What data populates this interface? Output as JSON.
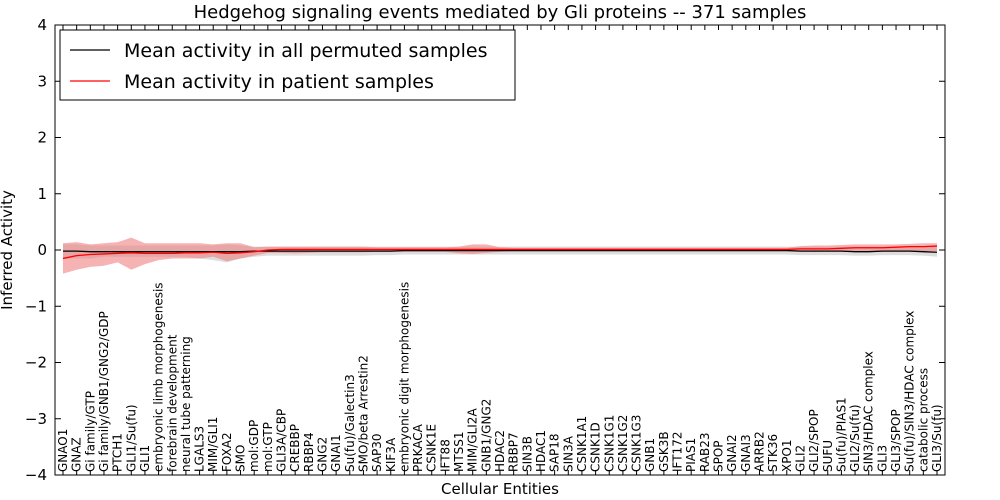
{
  "chart_data": {
    "type": "line",
    "title": "Hedgehog signaling events mediated by Gli proteins -- 371 samples",
    "xlabel": "Cellular Entities",
    "ylabel": "Inferred Activity",
    "ylim": [
      -4,
      4
    ],
    "yticks": [
      -4,
      -3,
      -2,
      -1,
      0,
      1,
      2,
      3,
      4
    ],
    "ytick_labels": [
      "−4",
      "−3",
      "−2",
      "−1",
      "0",
      "1",
      "2",
      "3",
      "4"
    ],
    "grid": false,
    "legend_position": "top-left",
    "categories": [
      "GNAO1",
      "GNAZ",
      "Gi family/GTP",
      "Gi family/GNB1/GNG2/GDP",
      "PTCH1",
      "GLI1/Su(fu)",
      "GLI1",
      "embryonic limb morphogenesis",
      "forebrain development",
      "neural tube patterning",
      "LGALS3",
      "MIM/GLI1",
      "FOXA2",
      "SMO",
      "mol:GDP",
      "mol:GTP",
      "GLI3A/CBP",
      "CREBBP",
      "RBBP4",
      "GNG2",
      "GNAI1",
      "Su(fu)/Galectin3",
      "SMO/beta Arrestin2",
      "SAP30",
      "KIF3A",
      "embryonic digit morphogenesis",
      "PRKACA",
      "CSNK1E",
      "IFT88",
      "MTSS1",
      "MIM/GLI2A",
      "GNB1/GNG2",
      "HDAC2",
      "RBBP7",
      "SIN3B",
      "HDAC1",
      "SAP18",
      "SIN3A",
      "CSNK1A1",
      "CSNK1D",
      "CSNK1G1",
      "CSNK1G2",
      "CSNK1G3",
      "GNB1",
      "GSK3B",
      "IFT172",
      "PIAS1",
      "RAB23",
      "SPOP",
      "GNAI2",
      "GNAI3",
      "ARRB2",
      "STK36",
      "XPO1",
      "GLI2",
      "GLI2/SPOP",
      "SUFU",
      "Su(fu)/PIAS1",
      "GLI2/Su(fu)",
      "SIN3/HDAC complex",
      "GLI3",
      "GLI3/SPOP",
      "Su(fu)/SIN3/HDAC complex",
      "catabolic process",
      "GLI3/Su(fu)"
    ],
    "series": [
      {
        "name": "Mean activity in all permuted samples",
        "color": "#000000",
        "band_color": "#bbbbbb",
        "values": [
          -0.02,
          -0.02,
          -0.03,
          -0.03,
          -0.03,
          -0.03,
          -0.03,
          -0.03,
          -0.03,
          -0.03,
          -0.03,
          -0.03,
          -0.03,
          -0.03,
          -0.02,
          -0.02,
          -0.02,
          -0.02,
          -0.02,
          -0.02,
          -0.02,
          -0.02,
          -0.02,
          -0.02,
          -0.02,
          -0.01,
          -0.01,
          -0.01,
          -0.01,
          -0.01,
          -0.01,
          -0.01,
          -0.01,
          -0.01,
          -0.01,
          -0.01,
          -0.01,
          -0.01,
          -0.01,
          -0.01,
          -0.01,
          -0.01,
          -0.01,
          -0.01,
          -0.01,
          -0.01,
          -0.01,
          -0.01,
          -0.01,
          -0.01,
          -0.01,
          -0.01,
          -0.01,
          -0.01,
          -0.02,
          -0.02,
          -0.02,
          -0.02,
          -0.03,
          -0.03,
          -0.02,
          -0.02,
          -0.02,
          -0.03,
          -0.04
        ],
        "band_lower": [
          -0.15,
          -0.15,
          -0.15,
          -0.12,
          -0.12,
          -0.12,
          -0.12,
          -0.12,
          -0.12,
          -0.12,
          -0.15,
          -0.18,
          -0.22,
          -0.15,
          -0.12,
          -0.1,
          -0.1,
          -0.1,
          -0.1,
          -0.1,
          -0.1,
          -0.1,
          -0.1,
          -0.09,
          -0.09,
          -0.08,
          -0.08,
          -0.08,
          -0.08,
          -0.08,
          -0.08,
          -0.08,
          -0.08,
          -0.08,
          -0.08,
          -0.08,
          -0.08,
          -0.08,
          -0.08,
          -0.08,
          -0.08,
          -0.08,
          -0.08,
          -0.08,
          -0.08,
          -0.08,
          -0.08,
          -0.08,
          -0.08,
          -0.08,
          -0.08,
          -0.08,
          -0.08,
          -0.08,
          -0.09,
          -0.09,
          -0.09,
          -0.09,
          -0.1,
          -0.1,
          -0.09,
          -0.09,
          -0.09,
          -0.1,
          -0.12
        ],
        "band_upper": [
          0.1,
          0.1,
          0.08,
          0.08,
          0.08,
          0.08,
          0.08,
          0.08,
          0.08,
          0.08,
          0.08,
          0.08,
          0.1,
          0.08,
          0.06,
          0.06,
          0.06,
          0.06,
          0.06,
          0.06,
          0.06,
          0.06,
          0.06,
          0.06,
          0.06,
          0.06,
          0.06,
          0.06,
          0.06,
          0.06,
          0.06,
          0.06,
          0.06,
          0.06,
          0.06,
          0.06,
          0.06,
          0.06,
          0.06,
          0.06,
          0.06,
          0.06,
          0.06,
          0.06,
          0.06,
          0.06,
          0.06,
          0.06,
          0.06,
          0.06,
          0.06,
          0.06,
          0.06,
          0.06,
          0.06,
          0.06,
          0.06,
          0.06,
          0.06,
          0.06,
          0.06,
          0.06,
          0.06,
          0.06,
          0.06
        ]
      },
      {
        "name": "Mean activity in patient samples",
        "color": "#ff0000",
        "band_color": "#f08080",
        "values": [
          -0.15,
          -0.1,
          -0.08,
          -0.07,
          -0.06,
          -0.05,
          -0.06,
          -0.06,
          -0.06,
          -0.05,
          -0.05,
          -0.04,
          -0.06,
          -0.05,
          -0.03,
          0.0,
          0.01,
          0.01,
          0.01,
          0.01,
          0.01,
          0.01,
          0.01,
          0.01,
          0.01,
          0.01,
          0.01,
          0.01,
          0.01,
          0.01,
          0.01,
          0.01,
          0.01,
          0.01,
          0.01,
          0.01,
          0.01,
          0.01,
          0.01,
          0.01,
          0.01,
          0.01,
          0.01,
          0.01,
          0.01,
          0.01,
          0.01,
          0.01,
          0.01,
          0.01,
          0.01,
          0.01,
          0.01,
          0.01,
          0.02,
          0.02,
          0.02,
          0.03,
          0.04,
          0.04,
          0.04,
          0.05,
          0.06,
          0.06,
          0.07
        ],
        "band_lower": [
          -0.42,
          -0.35,
          -0.3,
          -0.28,
          -0.22,
          -0.35,
          -0.25,
          -0.18,
          -0.15,
          -0.15,
          -0.15,
          -0.12,
          -0.2,
          -0.15,
          -0.1,
          -0.05,
          -0.05,
          -0.06,
          -0.05,
          -0.04,
          -0.04,
          -0.04,
          -0.04,
          -0.03,
          -0.03,
          -0.03,
          -0.03,
          -0.03,
          -0.03,
          -0.06,
          -0.07,
          -0.05,
          -0.03,
          -0.02,
          -0.02,
          -0.02,
          -0.02,
          -0.02,
          -0.02,
          -0.02,
          -0.02,
          -0.02,
          -0.02,
          -0.02,
          -0.02,
          -0.02,
          -0.02,
          -0.02,
          -0.02,
          -0.02,
          -0.02,
          -0.02,
          -0.02,
          -0.02,
          -0.02,
          -0.03,
          -0.02,
          -0.02,
          -0.02,
          -0.02,
          -0.02,
          -0.02,
          -0.02,
          -0.02,
          -0.02
        ],
        "band_upper": [
          0.12,
          0.14,
          0.1,
          0.12,
          0.14,
          0.22,
          0.12,
          0.12,
          0.12,
          0.12,
          0.12,
          0.1,
          0.12,
          0.12,
          0.05,
          0.06,
          0.06,
          0.06,
          0.06,
          0.06,
          0.06,
          0.06,
          0.06,
          0.05,
          0.05,
          0.05,
          0.05,
          0.05,
          0.05,
          0.06,
          0.1,
          0.1,
          0.05,
          0.04,
          0.04,
          0.04,
          0.04,
          0.04,
          0.04,
          0.04,
          0.04,
          0.04,
          0.04,
          0.04,
          0.04,
          0.04,
          0.04,
          0.04,
          0.04,
          0.04,
          0.04,
          0.04,
          0.04,
          0.04,
          0.07,
          0.08,
          0.08,
          0.09,
          0.1,
          0.1,
          0.1,
          0.1,
          0.11,
          0.12,
          0.12
        ]
      }
    ]
  }
}
